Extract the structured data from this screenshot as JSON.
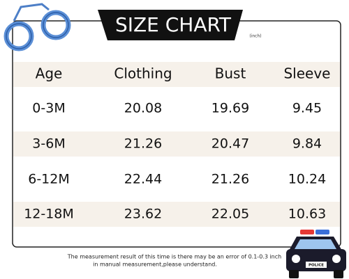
{
  "header": {
    "title": "SIZE CHART",
    "unit": "(inch)"
  },
  "table": {
    "columns": [
      "Age",
      "Clothing",
      "Bust",
      "Sleeve"
    ],
    "rows": [
      [
        "0-3M",
        "20.08",
        "19.69",
        "9.45"
      ],
      [
        "3-6M",
        "21.26",
        "20.47",
        "9.84"
      ],
      [
        "6-12M",
        "22.44",
        "21.26",
        "10.24"
      ],
      [
        "12-18M",
        "23.62",
        "22.05",
        "10.63"
      ]
    ]
  },
  "note": {
    "lines": [
      "The measurement result of this time is there may be an error of 0.1-0.3 inch",
      "in manual measurement,please understand."
    ]
  },
  "car": {
    "label": "POLICE"
  }
}
